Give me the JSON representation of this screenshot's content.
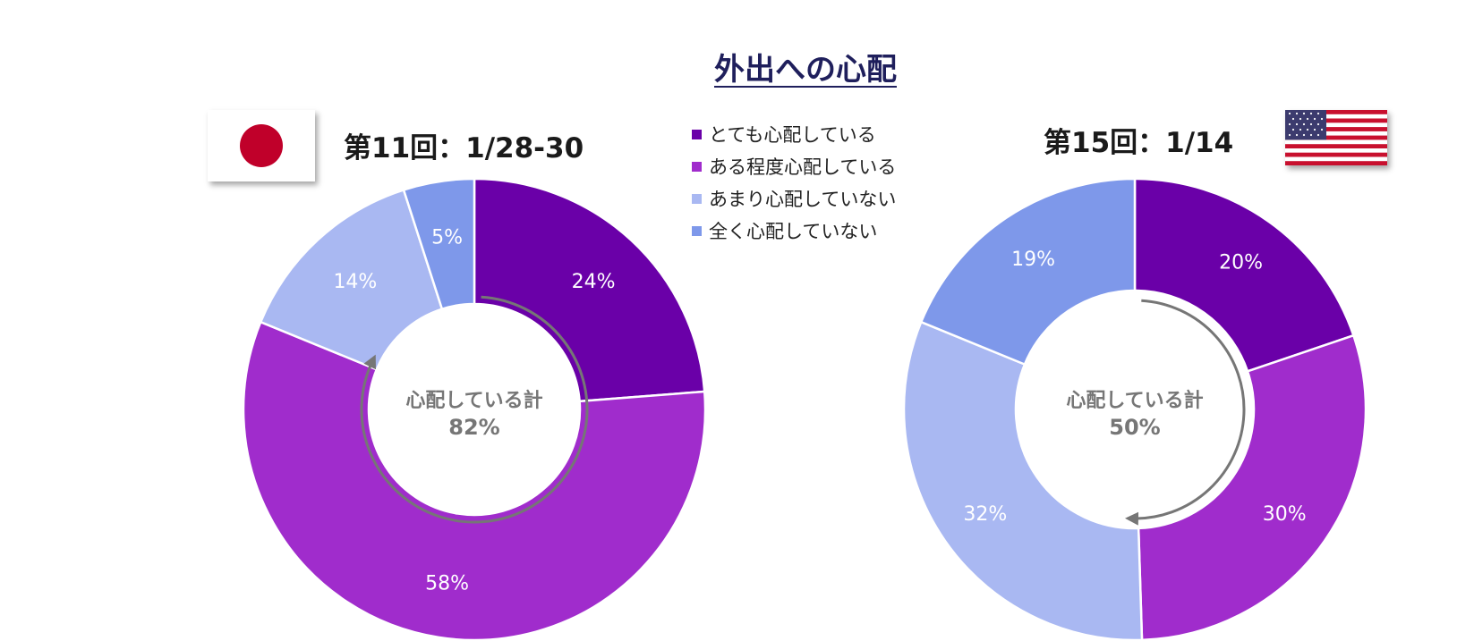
{
  "title": "外出への心配",
  "legend": [
    {
      "label": "とても心配している",
      "color": "#6a00a8"
    },
    {
      "label": "ある程度心配している",
      "color": "#a02ccc"
    },
    {
      "label": "あまり心配していない",
      "color": "#a9b8f2"
    },
    {
      "label": "全く心配していない",
      "color": "#7e98ea"
    }
  ],
  "chart_data": [
    {
      "type": "pie",
      "title": "第11回：1/28-30",
      "flag": "japan-flag-icon",
      "categories": [
        "とても心配している",
        "ある程度心配している",
        "あまり心配していない",
        "全く心配していない"
      ],
      "values": [
        24,
        58,
        14,
        5
      ],
      "labels": [
        "24%",
        "58%",
        "14%",
        "5%"
      ],
      "center_label": "心配している計",
      "center_value": "82%"
    },
    {
      "type": "pie",
      "title": "第15回：1/14",
      "flag": "us-flag-icon",
      "categories": [
        "とても心配している",
        "ある程度心配している",
        "あまり心配していない",
        "全く心配していない"
      ],
      "values": [
        20,
        30,
        32,
        19
      ],
      "labels": [
        "20%",
        "30%",
        "32%",
        "19%"
      ],
      "center_label": "心配している計",
      "center_value": "50%"
    }
  ]
}
